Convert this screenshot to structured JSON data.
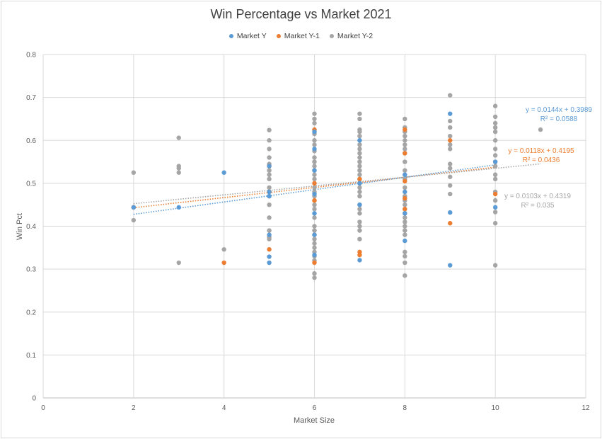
{
  "chart_data": {
    "type": "scatter",
    "title": "Win Percentage vs Market 2021",
    "xlabel": "Market Size",
    "ylabel": "Win Pct",
    "xlim": [
      0,
      12
    ],
    "ylim": [
      0,
      0.8
    ],
    "x_ticks": [
      "0",
      "2",
      "4",
      "6",
      "8",
      "10",
      "12"
    ],
    "y_ticks": [
      "0",
      "0.1",
      "0.2",
      "0.3",
      "0.4",
      "0.5",
      "0.6",
      "0.7",
      "0.8"
    ],
    "grid": true,
    "legend_position": "top",
    "series": [
      {
        "name": "Market Y",
        "color": "#5b9bd5",
        "points": [
          [
            2,
            0.444
          ],
          [
            3,
            0.444
          ],
          [
            4,
            0.525
          ],
          [
            5,
            0.315
          ],
          [
            5,
            0.329
          ],
          [
            5,
            0.38
          ],
          [
            5,
            0.47
          ],
          [
            5,
            0.48
          ],
          [
            5,
            0.54
          ],
          [
            6,
            0.333
          ],
          [
            6,
            0.38
          ],
          [
            6,
            0.43
          ],
          [
            6,
            0.475
          ],
          [
            6,
            0.53
          ],
          [
            6,
            0.58
          ],
          [
            6,
            0.62
          ],
          [
            7,
            0.321
          ],
          [
            7,
            0.45
          ],
          [
            7,
            0.5
          ],
          [
            7,
            0.6
          ],
          [
            8,
            0.366
          ],
          [
            8,
            0.43
          ],
          [
            8,
            0.48
          ],
          [
            8,
            0.52
          ],
          [
            9,
            0.309
          ],
          [
            9,
            0.432
          ],
          [
            9,
            0.662
          ],
          [
            10,
            0.444
          ],
          [
            10,
            0.55
          ]
        ],
        "trendline": {
          "equation": "y = 0.0144x + 0.3989",
          "r2": "R² = 0.0588",
          "slope": 0.0144,
          "intercept": 0.3989,
          "xrange": [
            2,
            10
          ]
        }
      },
      {
        "name": "Market Y-1",
        "color": "#ed7d31",
        "points": [
          [
            2,
            0.444
          ],
          [
            4,
            0.315
          ],
          [
            5,
            0.346
          ],
          [
            5,
            0.48
          ],
          [
            5,
            0.54
          ],
          [
            6,
            0.315
          ],
          [
            6,
            0.38
          ],
          [
            6,
            0.46
          ],
          [
            6,
            0.5
          ],
          [
            6,
            0.625
          ],
          [
            7,
            0.333
          ],
          [
            7,
            0.34
          ],
          [
            7,
            0.51
          ],
          [
            8,
            0.44
          ],
          [
            8,
            0.465
          ],
          [
            8,
            0.505
          ],
          [
            8,
            0.57
          ],
          [
            8,
            0.625
          ],
          [
            9,
            0.407
          ],
          [
            9,
            0.6
          ],
          [
            10,
            0.475
          ]
        ],
        "trendline": {
          "equation": "y = 0.0118x + 0.4195",
          "r2": "R² = 0.0436",
          "slope": 0.0118,
          "intercept": 0.4195,
          "xrange": [
            2,
            10
          ]
        }
      },
      {
        "name": "Market Y-2",
        "color": "#a5a5a5",
        "points": [
          [
            2,
            0.525
          ],
          [
            2,
            0.444
          ],
          [
            2,
            0.414
          ],
          [
            3,
            0.606
          ],
          [
            3,
            0.54
          ],
          [
            3,
            0.535
          ],
          [
            3,
            0.525
          ],
          [
            3,
            0.315
          ],
          [
            4,
            0.346
          ],
          [
            5,
            0.624
          ],
          [
            5,
            0.6
          ],
          [
            5,
            0.58
          ],
          [
            5,
            0.56
          ],
          [
            5,
            0.545
          ],
          [
            5,
            0.53
          ],
          [
            5,
            0.52
          ],
          [
            5,
            0.51
          ],
          [
            5,
            0.49
          ],
          [
            5,
            0.47
          ],
          [
            5,
            0.45
          ],
          [
            5,
            0.42
          ],
          [
            5,
            0.39
          ],
          [
            5,
            0.375
          ],
          [
            5,
            0.37
          ],
          [
            6,
            0.662
          ],
          [
            6,
            0.65
          ],
          [
            6,
            0.64
          ],
          [
            6,
            0.625
          ],
          [
            6,
            0.615
          ],
          [
            6,
            0.6
          ],
          [
            6,
            0.59
          ],
          [
            6,
            0.575
          ],
          [
            6,
            0.56
          ],
          [
            6,
            0.55
          ],
          [
            6,
            0.54
          ],
          [
            6,
            0.53
          ],
          [
            6,
            0.52
          ],
          [
            6,
            0.51
          ],
          [
            6,
            0.5
          ],
          [
            6,
            0.49
          ],
          [
            6,
            0.48
          ],
          [
            6,
            0.47
          ],
          [
            6,
            0.46
          ],
          [
            6,
            0.45
          ],
          [
            6,
            0.44
          ],
          [
            6,
            0.42
          ],
          [
            6,
            0.4
          ],
          [
            6,
            0.39
          ],
          [
            6,
            0.37
          ],
          [
            6,
            0.36
          ],
          [
            6,
            0.35
          ],
          [
            6,
            0.34
          ],
          [
            6,
            0.33
          ],
          [
            6,
            0.32
          ],
          [
            6,
            0.29
          ],
          [
            6,
            0.28
          ],
          [
            7,
            0.662
          ],
          [
            7,
            0.65
          ],
          [
            7,
            0.625
          ],
          [
            7,
            0.62
          ],
          [
            7,
            0.61
          ],
          [
            7,
            0.6
          ],
          [
            7,
            0.59
          ],
          [
            7,
            0.58
          ],
          [
            7,
            0.57
          ],
          [
            7,
            0.56
          ],
          [
            7,
            0.55
          ],
          [
            7,
            0.54
          ],
          [
            7,
            0.53
          ],
          [
            7,
            0.52
          ],
          [
            7,
            0.51
          ],
          [
            7,
            0.5
          ],
          [
            7,
            0.49
          ],
          [
            7,
            0.48
          ],
          [
            7,
            0.47
          ],
          [
            7,
            0.45
          ],
          [
            7,
            0.44
          ],
          [
            7,
            0.43
          ],
          [
            7,
            0.41
          ],
          [
            7,
            0.4
          ],
          [
            7,
            0.39
          ],
          [
            7,
            0.37
          ],
          [
            8,
            0.65
          ],
          [
            8,
            0.63
          ],
          [
            8,
            0.62
          ],
          [
            8,
            0.61
          ],
          [
            8,
            0.6
          ],
          [
            8,
            0.59
          ],
          [
            8,
            0.58
          ],
          [
            8,
            0.57
          ],
          [
            8,
            0.55
          ],
          [
            8,
            0.53
          ],
          [
            8,
            0.52
          ],
          [
            8,
            0.51
          ],
          [
            8,
            0.49
          ],
          [
            8,
            0.47
          ],
          [
            8,
            0.46
          ],
          [
            8,
            0.45
          ],
          [
            8,
            0.44
          ],
          [
            8,
            0.43
          ],
          [
            8,
            0.42
          ],
          [
            8,
            0.41
          ],
          [
            8,
            0.4
          ],
          [
            8,
            0.39
          ],
          [
            8,
            0.38
          ],
          [
            8,
            0.34
          ],
          [
            8,
            0.33
          ],
          [
            8,
            0.315
          ],
          [
            8,
            0.285
          ],
          [
            9,
            0.705
          ],
          [
            9,
            0.645
          ],
          [
            9,
            0.63
          ],
          [
            9,
            0.61
          ],
          [
            9,
            0.59
          ],
          [
            9,
            0.58
          ],
          [
            9,
            0.545
          ],
          [
            9,
            0.535
          ],
          [
            9,
            0.515
          ],
          [
            9,
            0.495
          ],
          [
            9,
            0.475
          ],
          [
            10,
            0.68
          ],
          [
            10,
            0.655
          ],
          [
            10,
            0.64
          ],
          [
            10,
            0.63
          ],
          [
            10,
            0.62
          ],
          [
            10,
            0.6
          ],
          [
            10,
            0.58
          ],
          [
            10,
            0.565
          ],
          [
            10,
            0.55
          ],
          [
            10,
            0.54
          ],
          [
            10,
            0.52
          ],
          [
            10,
            0.51
          ],
          [
            10,
            0.48
          ],
          [
            10,
            0.46
          ],
          [
            10,
            0.433
          ],
          [
            10,
            0.407
          ],
          [
            10,
            0.309
          ],
          [
            11,
            0.625
          ]
        ],
        "trendline": {
          "equation": "y = 0.0103x + 0.4319",
          "r2": "R² = 0.035",
          "slope": 0.0103,
          "intercept": 0.4319,
          "xrange": [
            2,
            11
          ]
        }
      }
    ]
  }
}
